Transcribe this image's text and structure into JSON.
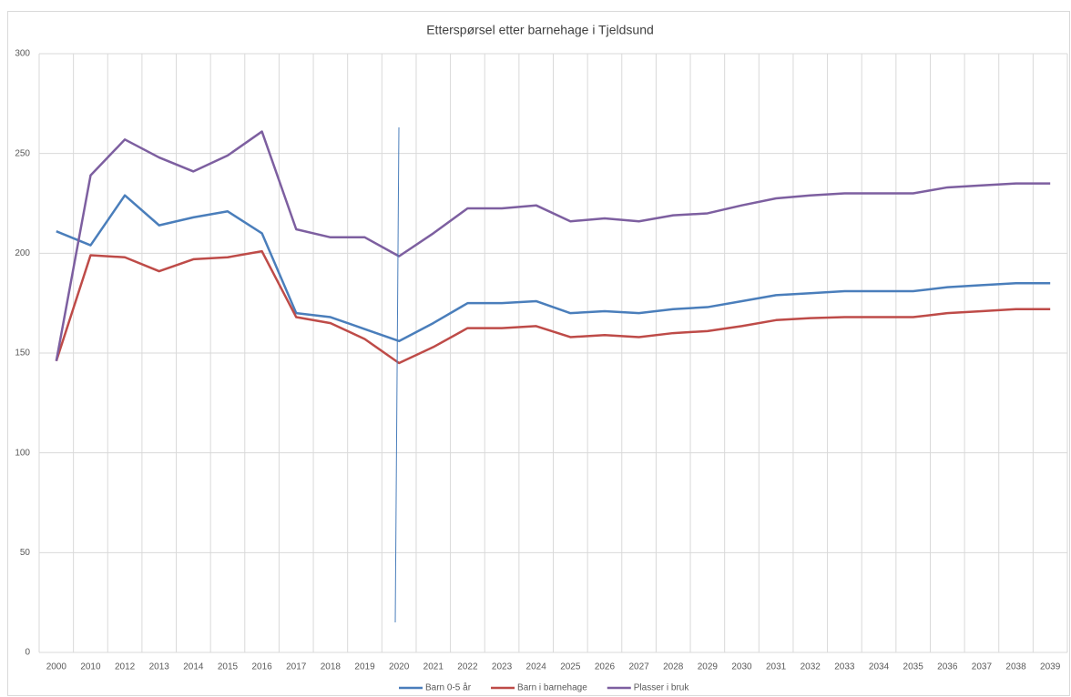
{
  "chart_data": {
    "type": "line",
    "title": "Etterspørsel etter barnehage i Tjeldsund",
    "categories": [
      "2000",
      "2010",
      "2012",
      "2013",
      "2014",
      "2015",
      "2016",
      "2017",
      "2018",
      "2019",
      "2020",
      "2021",
      "2022",
      "2023",
      "2024",
      "2025",
      "2026",
      "2027",
      "2028",
      "2029",
      "2030",
      "2031",
      "2032",
      "2033",
      "2034",
      "2035",
      "2036",
      "2037",
      "2038",
      "2039"
    ],
    "series": [
      {
        "name": "Barn 0-5 år",
        "color": "#4a7ebb",
        "values": [
          211,
          204,
          229,
          214,
          218,
          221,
          210,
          170,
          168,
          162,
          156,
          165,
          175,
          175,
          176,
          170,
          171,
          170,
          172,
          173,
          176,
          179,
          180,
          181,
          181,
          181,
          183,
          184,
          185,
          185
        ]
      },
      {
        "name": "Barn i barnehage",
        "color": "#be4b48",
        "values": [
          146,
          199,
          198,
          191,
          197,
          198,
          201,
          168,
          165,
          157,
          145,
          153,
          162.5,
          162.5,
          163.5,
          158,
          159,
          158,
          160,
          161,
          163.5,
          166.5,
          167.5,
          168,
          168,
          168,
          170,
          171,
          172,
          172
        ]
      },
      {
        "name": "Plasser i bruk",
        "color": "#7d5fa0",
        "values": [
          146,
          239,
          257,
          248,
          241,
          249,
          261,
          212,
          208,
          208,
          198.5,
          210,
          222.5,
          222.5,
          224,
          216,
          217.5,
          216,
          219,
          220,
          224,
          227.5,
          229,
          230,
          230,
          230,
          233,
          234,
          235,
          235
        ]
      }
    ],
    "ylim": [
      0,
      300
    ],
    "yticks": [
      0,
      50,
      100,
      150,
      200,
      250,
      300
    ],
    "grid": true,
    "legend": "bottom"
  }
}
